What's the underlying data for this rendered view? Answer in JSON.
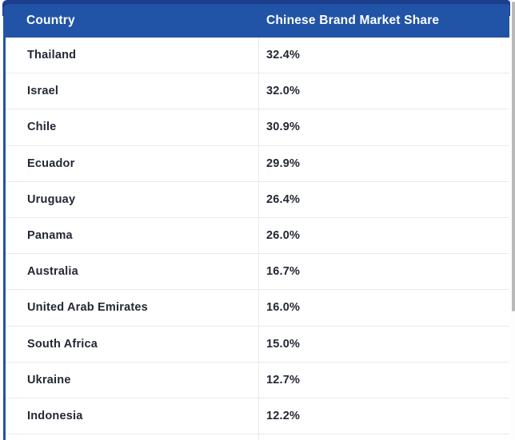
{
  "table": {
    "columns": [
      {
        "label": "Country"
      },
      {
        "label": "Chinese Brand Market Share"
      }
    ],
    "rows": [
      {
        "country": "Thailand",
        "share": "32.4%"
      },
      {
        "country": "Israel",
        "share": "32.0%"
      },
      {
        "country": "Chile",
        "share": "30.9%"
      },
      {
        "country": "Ecuador",
        "share": "29.9%"
      },
      {
        "country": "Uruguay",
        "share": "26.4%"
      },
      {
        "country": "Panama",
        "share": "26.0%"
      },
      {
        "country": "Australia",
        "share": "16.7%"
      },
      {
        "country": "United Arab Emirates",
        "share": "16.0%"
      },
      {
        "country": "South Africa",
        "share": "15.0%"
      },
      {
        "country": "Ukraine",
        "share": "12.7%"
      },
      {
        "country": "Indonesia",
        "share": "12.2%"
      }
    ]
  },
  "chart_data": {
    "type": "table",
    "title": "",
    "columns": [
      "Country",
      "Chinese Brand Market Share"
    ],
    "categories": [
      "Thailand",
      "Israel",
      "Chile",
      "Ecuador",
      "Uruguay",
      "Panama",
      "Australia",
      "United Arab Emirates",
      "South Africa",
      "Ukraine",
      "Indonesia"
    ],
    "values": [
      32.4,
      32.0,
      30.9,
      29.9,
      26.4,
      26.0,
      16.7,
      16.0,
      15.0,
      12.7,
      12.2
    ],
    "value_unit": "%",
    "sort_order": "descending",
    "notes": "twelfth row partially visible at bottom edge"
  },
  "theme": {
    "header_bg": "#2154a7",
    "top_accent_bar": "#1c3e8c",
    "header_text": "#ffffff",
    "body_text": "#232834",
    "divider": "#e9e9eb",
    "left_border": "#2154a7",
    "scrollbar_thumb": "#b9b9b9"
  }
}
